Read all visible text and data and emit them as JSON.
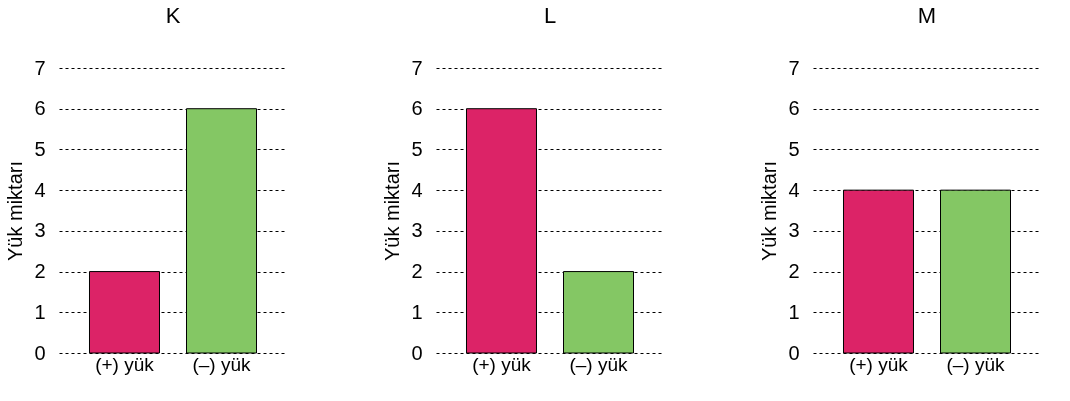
{
  "chart_data": [
    {
      "type": "bar",
      "title": "K",
      "ylabel": "Yük miktarı",
      "categories": [
        "(+) yük",
        "(–) yük"
      ],
      "values": [
        2,
        6
      ],
      "colors": [
        "#dc2367",
        "#84c764"
      ],
      "ylim": [
        0,
        7
      ],
      "yticks": [
        0,
        1,
        2,
        3,
        4,
        5,
        6,
        7
      ],
      "grid": "y",
      "legend": false
    },
    {
      "type": "bar",
      "title": "L",
      "ylabel": "Yük miktarı",
      "categories": [
        "(+) yük",
        "(–) yük"
      ],
      "values": [
        6,
        2
      ],
      "colors": [
        "#dc2367",
        "#84c764"
      ],
      "ylim": [
        0,
        7
      ],
      "yticks": [
        0,
        1,
        2,
        3,
        4,
        5,
        6,
        7
      ],
      "grid": "y",
      "legend": false
    },
    {
      "type": "bar",
      "title": "M",
      "ylabel": "Yük miktarı",
      "categories": [
        "(+) yük",
        "(–) yük"
      ],
      "values": [
        4,
        4
      ],
      "colors": [
        "#dc2367",
        "#84c764"
      ],
      "ylim": [
        0,
        7
      ],
      "yticks": [
        0,
        1,
        2,
        3,
        4,
        5,
        6,
        7
      ],
      "grid": "y",
      "legend": false
    }
  ]
}
